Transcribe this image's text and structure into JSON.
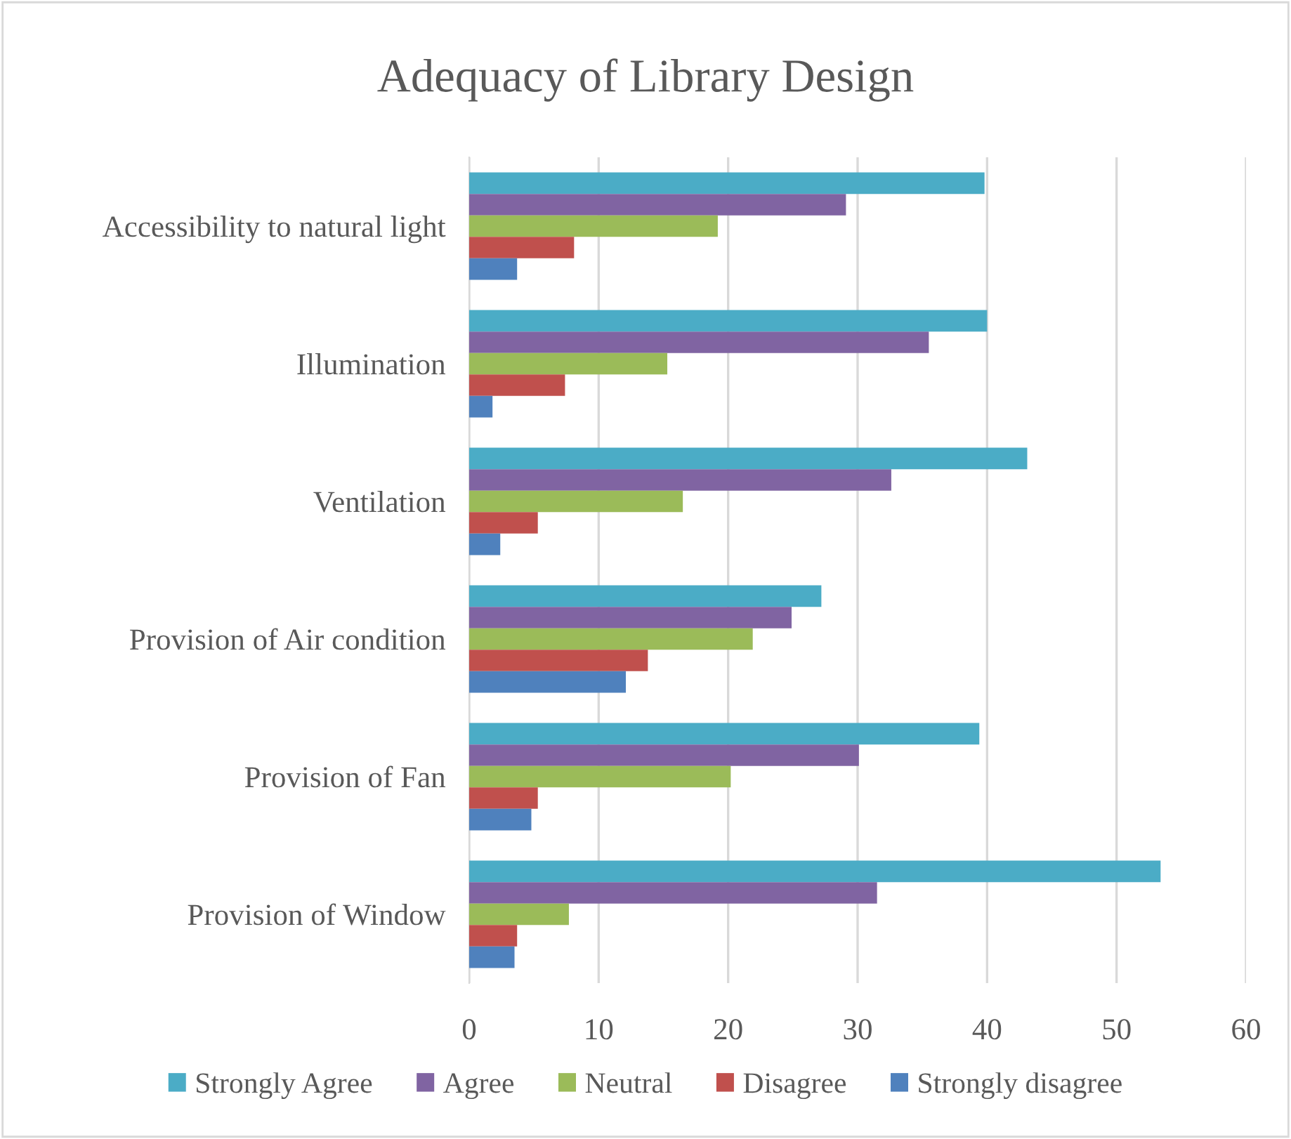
{
  "chart_data": {
    "type": "bar",
    "orientation": "horizontal",
    "title": "Adequacy of Library Design",
    "categories": [
      "Accessibility to natural light",
      "Illumination",
      "Ventilation",
      "Provision of Air condition",
      "Provision of Fan",
      "Provision of Window"
    ],
    "series": [
      {
        "name": "Strongly Agree",
        "color": "#4bacc6",
        "values": [
          39.8,
          40.0,
          43.1,
          27.2,
          39.4,
          53.4
        ]
      },
      {
        "name": "Agree",
        "color": "#8064a2",
        "values": [
          29.1,
          35.5,
          32.6,
          24.9,
          30.1,
          31.5
        ]
      },
      {
        "name": "Neutral",
        "color": "#9bbb59",
        "values": [
          19.2,
          15.3,
          16.5,
          21.9,
          20.2,
          7.7
        ]
      },
      {
        "name": "Disagree",
        "color": "#c0504d",
        "values": [
          8.1,
          7.4,
          5.3,
          13.8,
          5.3,
          3.7
        ]
      },
      {
        "name": "Strongly disagree",
        "color": "#4f81bd",
        "values": [
          3.7,
          1.8,
          2.4,
          12.1,
          4.8,
          3.5
        ]
      }
    ],
    "xlim": [
      0,
      60
    ],
    "xticks": [
      0,
      10,
      20,
      30,
      40,
      50,
      60
    ],
    "grid": "x",
    "legend": "bottom"
  }
}
